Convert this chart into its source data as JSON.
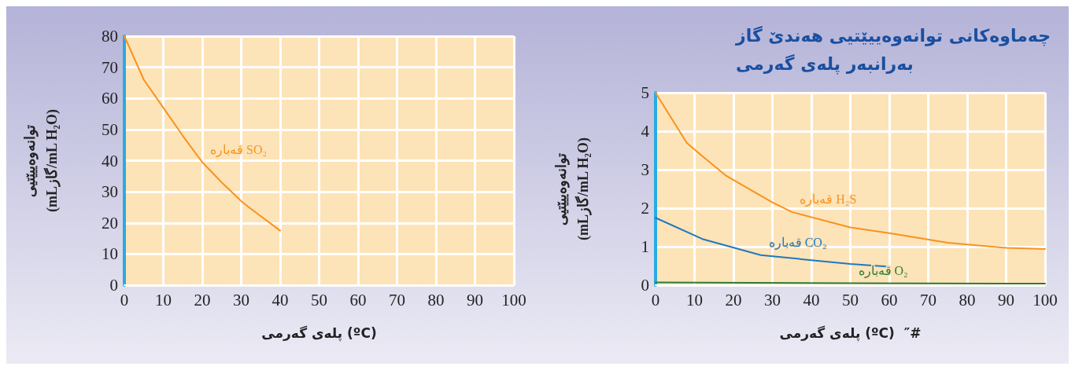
{
  "chart_data": [
    {
      "type": "line",
      "xlabel": "پلەی گەرمی (ºC)",
      "ylabel": "توانەوەییێتیی\n(mLگاز/mL H₂O)",
      "xlim": [
        0,
        100
      ],
      "ylim": [
        0,
        80
      ],
      "xticks": [
        0,
        10,
        20,
        30,
        40,
        50,
        60,
        70,
        80,
        90,
        100
      ],
      "yticks": [
        0,
        10,
        20,
        30,
        40,
        50,
        60,
        70,
        80
      ],
      "grid": true,
      "legend": false,
      "marker": "none",
      "series": [
        {
          "name": "قەبارە SO₂",
          "color": "#f7931e",
          "x": [
            0,
            5,
            10,
            15,
            20,
            25,
            30,
            32,
            40
          ],
          "values": [
            80,
            66,
            57,
            48,
            39.5,
            33,
            27,
            25,
            17.5
          ]
        }
      ]
    },
    {
      "type": "line",
      "title": "چەماوەکانی توانەوەییێتیی هەندێ گاز\nبەرانبەر پلەی گەرمی",
      "xlabel": "پلەی گەرمی (ºC)  ″#",
      "ylabel": "توانەوەییێتیی\n(mLگاز/mL H₂O)",
      "xlim": [
        0,
        100
      ],
      "ylim": [
        0,
        5
      ],
      "xticks": [
        0,
        10,
        20,
        30,
        40,
        50,
        60,
        70,
        80,
        90,
        100
      ],
      "yticks": [
        0,
        1,
        2,
        3,
        4,
        5
      ],
      "grid": true,
      "legend": false,
      "marker": "none",
      "series": [
        {
          "name": "قەبارە H₂S",
          "color": "#f7931e",
          "x": [
            0,
            8,
            12,
            18,
            30,
            35,
            50,
            60,
            75,
            90,
            100
          ],
          "values": [
            5,
            3.7,
            3.35,
            2.85,
            2.15,
            1.9,
            1.5,
            1.35,
            1.1,
            0.97,
            0.94
          ]
        },
        {
          "name": "قەبارە CO₂",
          "color": "#1f78c1",
          "x": [
            0,
            12,
            27,
            40,
            50,
            60
          ],
          "values": [
            1.75,
            1.2,
            0.78,
            0.65,
            0.55,
            0.48
          ]
        },
        {
          "name": "قەبارە O₂",
          "color": "#2e7d32",
          "x": [
            0,
            50,
            100
          ],
          "values": [
            0.07,
            0.05,
            0.04
          ]
        }
      ]
    }
  ]
}
